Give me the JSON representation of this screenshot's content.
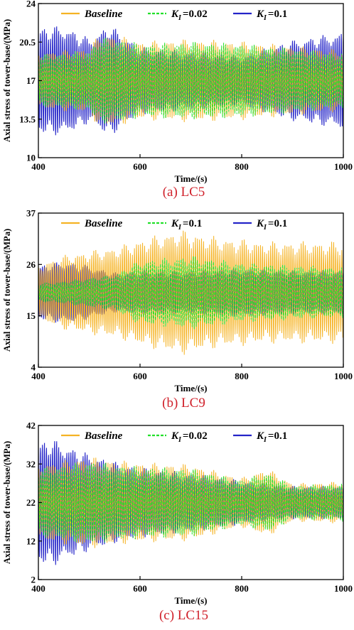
{
  "colors": {
    "baseline": "#F5B324",
    "ki_small": "#22E02A",
    "ki_large": "#2424C8"
  },
  "chart_data": [
    {
      "type": "line",
      "caption": "(a) LC5",
      "xlabel": "Time/(s)",
      "ylabel": "Axial stress of tower-base/(MPa)",
      "xlim": [
        400,
        1000
      ],
      "ylim": [
        10,
        24
      ],
      "xticks": [
        "400",
        "600",
        "800",
        "1000"
      ],
      "yticks": [
        "10",
        "13.5",
        "17",
        "20.5",
        "24"
      ],
      "legend_position": "top",
      "series": [
        {
          "name": "Baseline",
          "legend_main": "Baseline",
          "legend_sub": "",
          "legend_tail": "",
          "center": 17,
          "amplitude": [
            [
              400,
              2.6
            ],
            [
              500,
              3.0
            ],
            [
              520,
              4.3
            ],
            [
              560,
              4.1
            ],
            [
              600,
              3.6
            ],
            [
              700,
              3.8
            ],
            [
              800,
              3.6
            ],
            [
              900,
              3.2
            ],
            [
              1000,
              2.8
            ]
          ]
        },
        {
          "name": "K_I=0.02",
          "legend_main": "K",
          "legend_sub": "I",
          "legend_tail": "=0.02",
          "center": 17,
          "amplitude": [
            [
              400,
              2.4
            ],
            [
              500,
              2.8
            ],
            [
              520,
              4.0
            ],
            [
              560,
              3.9
            ],
            [
              600,
              3.4
            ],
            [
              700,
              3.6
            ],
            [
              800,
              3.4
            ],
            [
              900,
              3.0
            ],
            [
              1000,
              2.5
            ]
          ]
        },
        {
          "name": "K_I=0.1",
          "legend_main": "K",
          "legend_sub": "I",
          "legend_tail": "=0.1",
          "center": 17,
          "amplitude": [
            [
              400,
              5.0
            ],
            [
              450,
              5.2
            ],
            [
              500,
              4.0
            ],
            [
              540,
              5.3
            ],
            [
              600,
              3.2
            ],
            [
              700,
              2.8
            ],
            [
              800,
              2.4
            ],
            [
              900,
              3.8
            ],
            [
              1000,
              4.6
            ]
          ]
        }
      ]
    },
    {
      "type": "line",
      "caption": "(b) LC9",
      "xlabel": "Time/(s)",
      "ylabel": "Axial stress of tower-base/(MPa)",
      "xlim": [
        400,
        1000
      ],
      "ylim": [
        4,
        37
      ],
      "xticks": [
        "400",
        "600",
        "800",
        "1000"
      ],
      "yticks": [
        "4",
        "15",
        "26",
        "37"
      ],
      "legend_position": "top",
      "series": [
        {
          "name": "Baseline",
          "legend_main": "Baseline",
          "legend_sub": "",
          "legend_tail": "",
          "center": 20,
          "amplitude": [
            [
              400,
              6.0
            ],
            [
              450,
              8.0
            ],
            [
              500,
              9.0
            ],
            [
              560,
              10.0
            ],
            [
              600,
              11.5
            ],
            [
              680,
              13.5
            ],
            [
              750,
              12.0
            ],
            [
              850,
              11.0
            ],
            [
              950,
              11.0
            ],
            [
              1000,
              11.0
            ]
          ]
        },
        {
          "name": "K_I=0.1",
          "legend_main": "K",
          "legend_sub": "I",
          "legend_tail": "=0.1",
          "center": 20,
          "amplitude": [
            [
              400,
              2.0
            ],
            [
              450,
              2.5
            ],
            [
              550,
              4.0
            ],
            [
              600,
              7.0
            ],
            [
              700,
              8.0
            ],
            [
              800,
              6.5
            ],
            [
              900,
              6.0
            ],
            [
              1000,
              5.5
            ]
          ]
        },
        {
          "name": "K_I=0.1",
          "legend_main": "K",
          "legend_sub": "I",
          "legend_tail": "=0.1",
          "center": 20,
          "amplitude": [
            [
              400,
              6.0
            ],
            [
              450,
              7.0
            ],
            [
              500,
              6.0
            ],
            [
              550,
              4.5
            ],
            [
              600,
              5.0
            ],
            [
              700,
              5.0
            ],
            [
              800,
              5.5
            ],
            [
              900,
              5.0
            ],
            [
              1000,
              5.0
            ]
          ]
        }
      ]
    },
    {
      "type": "line",
      "caption": "(c) LC15",
      "xlabel": "Time/(s)",
      "ylabel": "Axial stress of tower-base/(MPa)",
      "xlim": [
        400,
        1000
      ],
      "ylim": [
        2,
        42
      ],
      "xticks": [
        "400",
        "600",
        "800",
        "1000"
      ],
      "yticks": [
        "2",
        "12",
        "22",
        "32",
        "42"
      ],
      "legend_position": "top",
      "series": [
        {
          "name": "Baseline",
          "legend_main": "Baseline",
          "legend_sub": "",
          "legend_tail": "",
          "center": 22,
          "amplitude": [
            [
              400,
              10.0
            ],
            [
              500,
              12.0
            ],
            [
              560,
              11.0
            ],
            [
              600,
              10.5
            ],
            [
              700,
              10.0
            ],
            [
              800,
              6.5
            ],
            [
              850,
              9.0
            ],
            [
              900,
              5.0
            ],
            [
              1000,
              5.5
            ]
          ]
        },
        {
          "name": "K_I=0.02",
          "legend_main": "K",
          "legend_sub": "I",
          "legend_tail": "=0.02",
          "center": 22,
          "amplitude": [
            [
              400,
              9.0
            ],
            [
              500,
              11.0
            ],
            [
              560,
              10.0
            ],
            [
              600,
              9.5
            ],
            [
              700,
              9.0
            ],
            [
              800,
              6.0
            ],
            [
              850,
              8.0
            ],
            [
              900,
              4.5
            ],
            [
              1000,
              5.0
            ]
          ]
        },
        {
          "name": "K_I=0.1",
          "legend_main": "K",
          "legend_sub": "I",
          "legend_tail": "=0.1",
          "center": 22,
          "amplitude": [
            [
              400,
              16.5
            ],
            [
              430,
              17.0
            ],
            [
              480,
              14.0
            ],
            [
              550,
              11.0
            ],
            [
              600,
              9.5
            ],
            [
              700,
              8.0
            ],
            [
              800,
              6.0
            ],
            [
              900,
              4.5
            ],
            [
              1000,
              4.5
            ]
          ]
        }
      ]
    }
  ]
}
